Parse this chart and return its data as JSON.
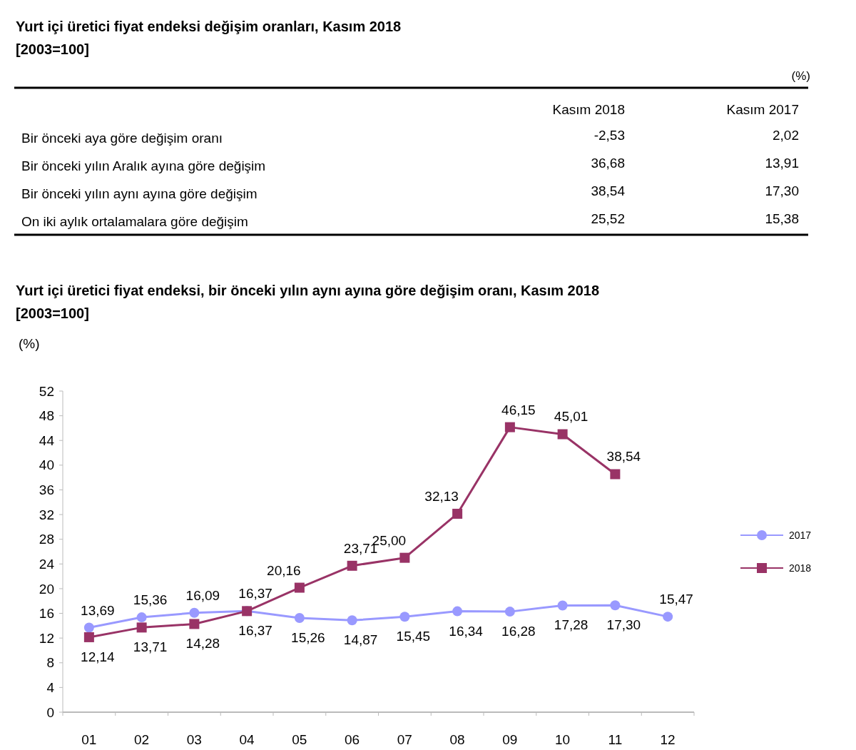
{
  "chart_data": [
    {
      "type": "other",
      "title": "Yurt içi üretici fiyat endeksi değişim oranları, Kasım 2018",
      "subtitle": "[2003=100]",
      "annotations": [
        "(%)"
      ],
      "categories": [
        "Bir önceki aya göre değişim oranı",
        "Bir önceki yılın Aralık ayına göre değişim",
        "Bir önceki yılın aynı ayına göre değişim",
        "On iki aylık ortalamalara göre değişim"
      ],
      "series": [
        {
          "name": "Kasım 2018",
          "values": [
            -2.53,
            36.68,
            38.54,
            25.52
          ],
          "value_labels": [
            "-2,53",
            "36,68",
            "38,54",
            "25,52"
          ]
        },
        {
          "name": "Kasım 2017",
          "values": [
            2.02,
            13.91,
            17.3,
            15.38
          ],
          "value_labels": [
            "2,02",
            "13,91",
            "17,30",
            "15,38"
          ]
        }
      ]
    },
    {
      "type": "line",
      "title": "Yurt içi üretici fiyat endeksi, bir önceki yılın aynı ayına göre değişim oranı, Kasım 2018",
      "subtitle": "[2003=100]",
      "ylabel": "(%)",
      "categories": [
        "01",
        "02",
        "03",
        "04",
        "05",
        "06",
        "07",
        "08",
        "09",
        "10",
        "11",
        "12"
      ],
      "ylim": [
        0,
        52
      ],
      "yticks": [
        0,
        4,
        8,
        12,
        16,
        20,
        24,
        28,
        32,
        36,
        40,
        44,
        48,
        52
      ],
      "grid": false,
      "legend": "right",
      "series": [
        {
          "name": "2017",
          "color": "#9999ff",
          "marker": "circle",
          "values": [
            13.69,
            15.36,
            16.09,
            16.37,
            15.26,
            14.87,
            15.45,
            16.34,
            16.28,
            17.28,
            17.3,
            15.47
          ],
          "value_labels": [
            "13,69",
            "15,36",
            "16,09",
            "16,37",
            "15,26",
            "14,87",
            "15,45",
            "16,34",
            "16,28",
            "17,28",
            "17,30",
            "15,47"
          ]
        },
        {
          "name": "2018",
          "color": "#993366",
          "marker": "square",
          "values": [
            12.14,
            13.71,
            14.28,
            16.37,
            20.16,
            23.71,
            25.0,
            32.13,
            46.15,
            45.01,
            38.54,
            null
          ],
          "value_labels": [
            "12,14",
            "13,71",
            "14,28",
            "16,37",
            "20,16",
            "23,71",
            "25,00",
            "32,13",
            "46,15",
            "45,01",
            "38,54",
            null
          ]
        }
      ]
    }
  ]
}
